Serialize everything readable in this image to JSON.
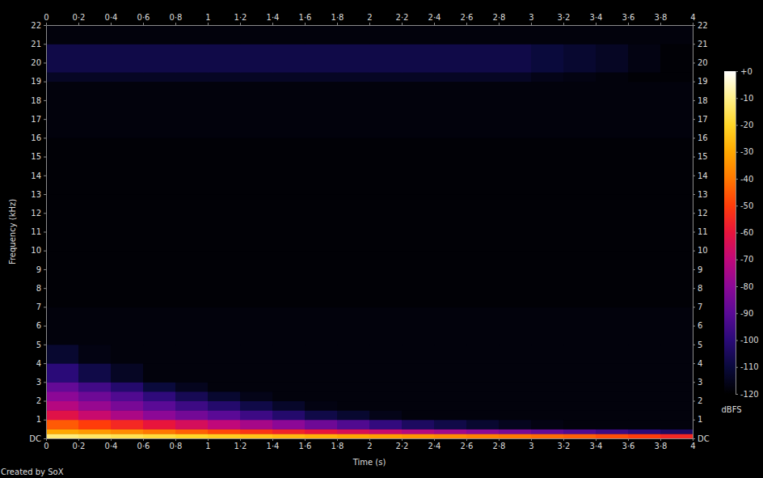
{
  "chart_data": {
    "type": "heatmap",
    "x_label": "Time (s)",
    "y_label": "Frequency (kHz)",
    "annotation": "Created by SoX",
    "xlim": [
      0,
      4
    ],
    "ylim": [
      0,
      22
    ],
    "xticks": [
      0,
      {
        "value": 0.2,
        "label": "0·2"
      },
      {
        "value": 0.4,
        "label": "0·4"
      },
      {
        "value": 0.6,
        "label": "0·6"
      },
      {
        "value": 0.8,
        "label": "0·8"
      },
      1,
      {
        "value": 1.2,
        "label": "1·2"
      },
      {
        "value": 1.4,
        "label": "1·4"
      },
      {
        "value": 1.6,
        "label": "1·6"
      },
      {
        "value": 1.8,
        "label": "1·8"
      },
      2,
      {
        "value": 2.2,
        "label": "2·2"
      },
      {
        "value": 2.4,
        "label": "2·4"
      },
      {
        "value": 2.6,
        "label": "2·6"
      },
      {
        "value": 2.8,
        "label": "2·8"
      },
      3,
      {
        "value": 3.2,
        "label": "3·2"
      },
      {
        "value": 3.4,
        "label": "3·4"
      },
      {
        "value": 3.6,
        "label": "3·6"
      },
      {
        "value": 3.8,
        "label": "3·8"
      },
      4
    ],
    "yticks": [
      {
        "value": 0,
        "label": "DC"
      },
      1,
      2,
      3,
      4,
      5,
      6,
      7,
      8,
      9,
      10,
      11,
      12,
      13,
      14,
      15,
      16,
      17,
      18,
      19,
      20,
      21,
      22
    ],
    "grid": false,
    "x_edges": [
      0,
      0.2,
      0.4,
      0.6,
      0.8,
      1,
      1.2,
      1.4,
      1.6,
      1.8,
      2,
      2.2,
      2.4,
      2.6,
      2.8,
      3,
      3.2,
      3.4,
      3.6,
      3.8,
      4
    ],
    "y_edges": [
      0,
      0.25,
      0.5,
      1,
      1.5,
      2,
      2.5,
      3,
      4,
      5,
      7,
      10,
      13,
      16,
      19,
      19.5,
      21,
      22
    ],
    "cells": [
      [
        -12,
        -14,
        -16,
        -18,
        -20,
        -22,
        -24,
        -26,
        -28,
        -30,
        -32,
        -34,
        -36,
        -38,
        -40,
        -42,
        -44,
        -47,
        -50,
        -55
      ],
      [
        -30,
        -33,
        -36,
        -40,
        -44,
        -48,
        -52,
        -56,
        -60,
        -64,
        -68,
        -72,
        -76,
        -80,
        -84,
        -88,
        -92,
        -96,
        -100,
        -104
      ],
      [
        -45,
        -50,
        -55,
        -60,
        -65,
        -70,
        -75,
        -80,
        -86,
        -92,
        -98,
        -104,
        -108,
        -112,
        -115,
        -117,
        -118,
        -118,
        -118,
        -118
      ],
      [
        -62,
        -68,
        -74,
        -80,
        -85,
        -90,
        -96,
        -102,
        -108,
        -112,
        -116,
        -118,
        -118,
        -118,
        -118,
        -118,
        -118,
        -118,
        -118,
        -118
      ],
      [
        -72,
        -78,
        -84,
        -90,
        -96,
        -102,
        -108,
        -113,
        -117,
        -118,
        -118,
        -118,
        -118,
        -118,
        -118,
        -118,
        -118,
        -118,
        -118,
        -118
      ],
      [
        -80,
        -86,
        -92,
        -99,
        -106,
        -112,
        -116,
        -118,
        -118,
        -118,
        -118,
        -118,
        -118,
        -118,
        -118,
        -118,
        -118,
        -118,
        -118,
        -118
      ],
      [
        -88,
        -95,
        -102,
        -110,
        -115,
        -118,
        -118,
        -118,
        -118,
        -118,
        -118,
        -118,
        -118,
        -118,
        -118,
        -118,
        -118,
        -118,
        -118,
        -118
      ],
      [
        -100,
        -108,
        -114,
        -118,
        -118,
        -118,
        -118,
        -118,
        -118,
        -118,
        -118,
        -118,
        -118,
        -118,
        -118,
        -118,
        -118,
        -118,
        -118,
        -118
      ],
      [
        -112,
        -117,
        -118,
        -118,
        -118,
        -118,
        -118,
        -118,
        -118,
        -118,
        -118,
        -118,
        -118,
        -118,
        -118,
        -118,
        -118,
        -118,
        -118,
        -118
      ],
      [
        -118,
        -118,
        -118,
        -118,
        -118,
        -118,
        -118,
        -118,
        -118,
        -118,
        -118,
        -118,
        -118,
        -118,
        -118,
        -118,
        -118,
        -118,
        -118,
        -118
      ],
      [
        -119,
        -119,
        -119,
        -119,
        -119,
        -119,
        -119,
        -119,
        -119,
        -119,
        -119,
        -119,
        -119,
        -119,
        -119,
        -119,
        -119,
        -119,
        -119,
        -119
      ],
      [
        -119,
        -119,
        -119,
        -119,
        -119,
        -119,
        -119,
        -119,
        -119,
        -119,
        -119,
        -119,
        -119,
        -119,
        -119,
        -119,
        -119,
        -119,
        -119,
        -119
      ],
      [
        -119,
        -119,
        -119,
        -119,
        -119,
        -119,
        -119,
        -119,
        -119,
        -119,
        -119,
        -119,
        -119,
        -119,
        -119,
        -119,
        -119,
        -119,
        -119,
        -119
      ],
      [
        -118,
        -118,
        -118,
        -118,
        -118,
        -118,
        -118,
        -118,
        -118,
        -118,
        -118,
        -118,
        -118,
        -118,
        -118,
        -118,
        -118,
        -118,
        -118,
        -118
      ],
      [
        -114,
        -114,
        -114,
        -114,
        -114,
        -114,
        -114,
        -114,
        -114,
        -114,
        -114,
        -114,
        -114,
        -114,
        -114,
        -116,
        -117,
        -118,
        -119,
        -119
      ],
      [
        -108,
        -108,
        -108,
        -108,
        -108,
        -108,
        -108,
        -108,
        -108,
        -108,
        -108,
        -108,
        -108,
        -108,
        -108,
        -110,
        -112,
        -114,
        -117,
        -119
      ],
      [
        -118,
        -118,
        -118,
        -118,
        -118,
        -118,
        -118,
        -118,
        -118,
        -118,
        -118,
        -118,
        -118,
        -118,
        -118,
        -118,
        -118,
        -118,
        -118,
        -118
      ]
    ],
    "colorbar": {
      "range": [
        -120,
        0
      ],
      "ticks": [
        {
          "value": 0,
          "label": "+0"
        },
        -10,
        -20,
        -30,
        -40,
        -50,
        -60,
        -70,
        -80,
        -90,
        -100,
        -110,
        -120
      ],
      "label": "dBFS"
    }
  }
}
